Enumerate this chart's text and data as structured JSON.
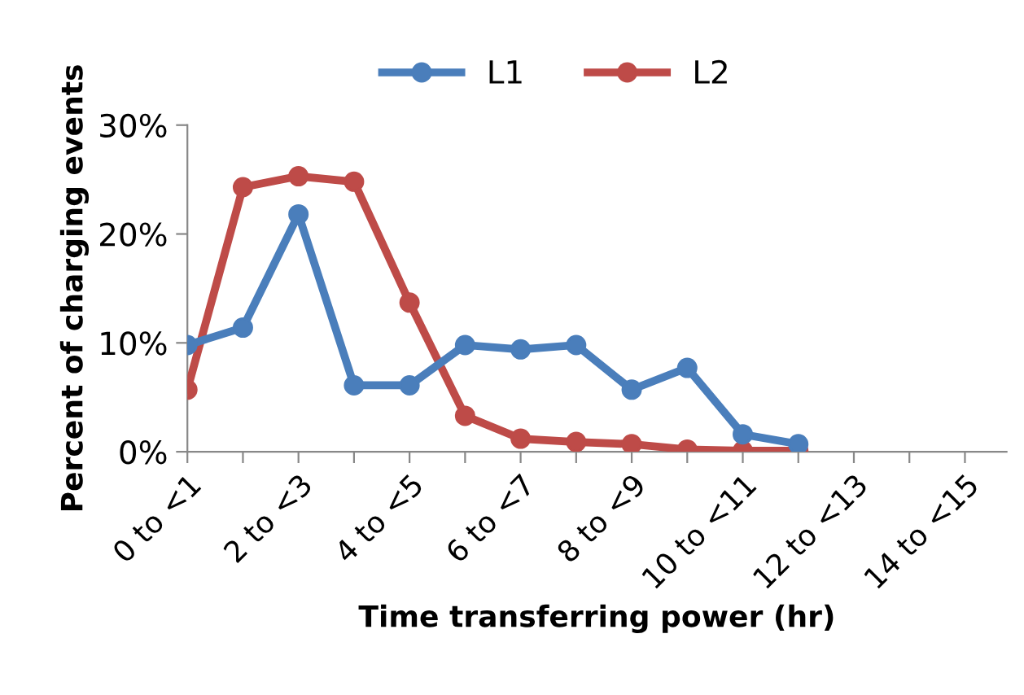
{
  "chart_data": {
    "type": "line",
    "xlabel": "Time transferring power (hr)",
    "ylabel": "Percent of charging events",
    "categories": [
      "0 to <1",
      null,
      "2 to <3",
      null,
      "4 to <5",
      null,
      "6 to <7",
      null,
      "8 to <9",
      null,
      "10 to <11",
      null,
      "12 to <13",
      null,
      "14 to <15"
    ],
    "series": [
      {
        "name": "L1",
        "color": "#4a7ebb",
        "values": [
          9.8,
          11.4,
          21.8,
          6.1,
          6.1,
          9.8,
          9.4,
          9.8,
          5.7,
          7.7,
          1.6,
          0.7,
          null,
          null,
          null
        ]
      },
      {
        "name": "L2",
        "color": "#be4b48",
        "values": [
          5.7,
          24.3,
          25.3,
          24.8,
          13.7,
          3.3,
          1.2,
          0.9,
          0.7,
          0.2,
          0.1,
          0.1,
          null,
          null,
          null
        ]
      }
    ],
    "ylim": [
      0,
      30
    ],
    "yticks": [
      {
        "value": 0,
        "label": "0%"
      },
      {
        "value": 10,
        "label": "10%"
      },
      {
        "value": 20,
        "label": "20%"
      },
      {
        "value": 30,
        "label": "30%"
      }
    ],
    "marker": "circle",
    "line_style": "solid",
    "legend": "top",
    "grid": false
  }
}
